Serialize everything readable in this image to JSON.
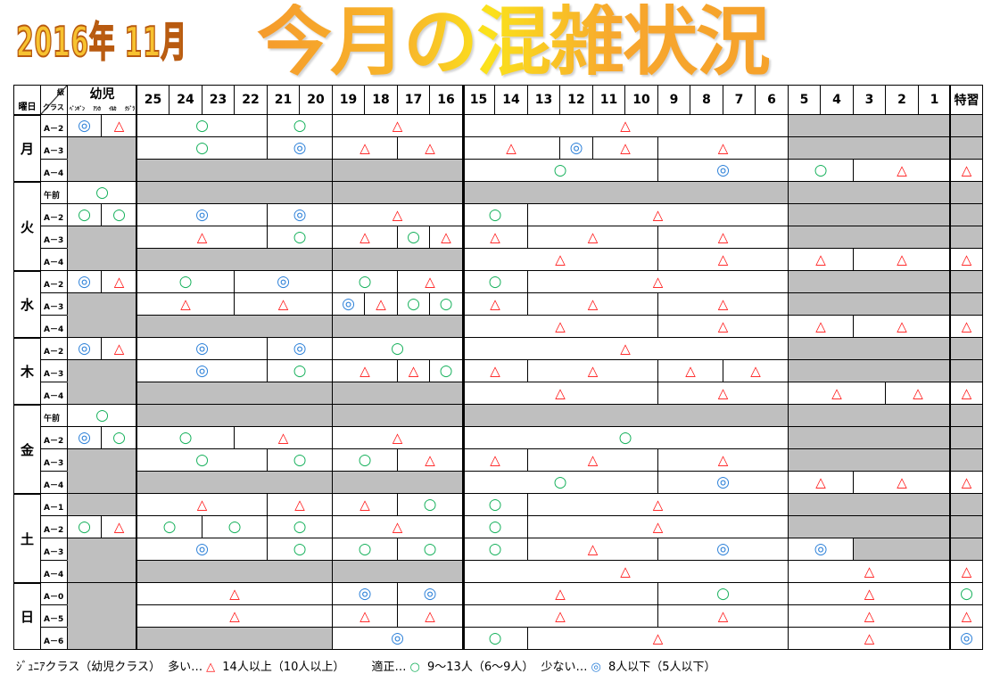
{
  "title": {
    "date": "2016年 11月",
    "main": "今月の混雑状況"
  },
  "colors": {
    "triangle": "#ff1010",
    "circle": "#14b05a",
    "double_circle": "#2a7fd8",
    "closed": "#bfbfbf",
    "title": "#f7a72e"
  },
  "marks": {
    "T": "△",
    "O": "○",
    "D": "◎"
  },
  "header": {
    "weekday": "曜日",
    "grade": "級",
    "class": "クラス",
    "yoji": "幼児",
    "yoji_sub": [
      "ﾍﾟﾝｷﾞﾝ",
      "ｱｼｶ",
      "ｲﾙｶ",
      "ｸｼﾞﾗ"
    ],
    "dates": [
      "25",
      "24",
      "23",
      "22",
      "21",
      "20",
      "19",
      "18",
      "17",
      "16",
      "15",
      "14",
      "13",
      "12",
      "11",
      "10",
      "9",
      "8",
      "7",
      "6",
      "5",
      "4",
      "3",
      "2",
      "1"
    ],
    "special": "特習"
  },
  "days": [
    {
      "label": "月",
      "rows": [
        {
          "class": "A－2",
          "yoji": [
            "D",
            "T"
          ],
          "segs": [
            [
              "25",
              "22",
              "O"
            ],
            [
              "21",
              "20",
              "O"
            ],
            [
              "19",
              "16",
              "T"
            ],
            [
              "15",
              "6",
              "T"
            ],
            [
              "5",
              "1",
              "G"
            ],
            [
              "特習",
              "特習",
              "G"
            ]
          ]
        },
        {
          "class": "A－3",
          "yoji": "G",
          "segs": [
            [
              "25",
              "22",
              "O"
            ],
            [
              "21",
              "20",
              "D"
            ],
            [
              "19",
              "18",
              "T"
            ],
            [
              "17",
              "16",
              "T"
            ],
            [
              "15",
              "13",
              "T"
            ],
            [
              "12",
              "12",
              "D"
            ],
            [
              "11",
              "10",
              "T"
            ],
            [
              "9",
              "6",
              "T"
            ],
            [
              "5",
              "1",
              "G"
            ],
            [
              "特習",
              "特習",
              "G"
            ]
          ]
        },
        {
          "class": "A－4",
          "yoji": "G",
          "segs": [
            [
              "25",
              "20",
              "G"
            ],
            [
              "19",
              "16",
              "G"
            ],
            [
              "15",
              "10",
              "O"
            ],
            [
              "9",
              "6",
              "D"
            ],
            [
              "5",
              "4",
              "O"
            ],
            [
              "3",
              "1",
              "T"
            ],
            [
              "特習",
              "特習",
              "T"
            ]
          ]
        }
      ]
    },
    {
      "label": "火",
      "rows": [
        {
          "class": "午前",
          "yoji": "O",
          "segs": [
            [
              "25",
              "20",
              "G"
            ],
            [
              "19",
              "16",
              "G"
            ],
            [
              "15",
              "6",
              "G"
            ],
            [
              "5",
              "1",
              "G"
            ],
            [
              "特習",
              "特習",
              "G"
            ]
          ]
        },
        {
          "class": "A－2",
          "yoji": [
            "O",
            "O"
          ],
          "segs": [
            [
              "25",
              "22",
              "D"
            ],
            [
              "21",
              "20",
              "D"
            ],
            [
              "19",
              "16",
              "T"
            ],
            [
              "15",
              "14",
              "O"
            ],
            [
              "13",
              "6",
              "T"
            ],
            [
              "5",
              "1",
              "G"
            ],
            [
              "特習",
              "特習",
              "G"
            ]
          ]
        },
        {
          "class": "A－3",
          "yoji": "G",
          "segs": [
            [
              "25",
              "22",
              "T"
            ],
            [
              "21",
              "20",
              "O"
            ],
            [
              "19",
              "18",
              "T"
            ],
            [
              "17",
              "17",
              "O"
            ],
            [
              "16",
              "16",
              "T"
            ],
            [
              "15",
              "14",
              "T"
            ],
            [
              "13",
              "10",
              "T"
            ],
            [
              "9",
              "6",
              "T"
            ],
            [
              "5",
              "1",
              "G"
            ],
            [
              "特習",
              "特習",
              "G"
            ]
          ]
        },
        {
          "class": "A－4",
          "yoji": "G",
          "segs": [
            [
              "25",
              "20",
              "G"
            ],
            [
              "19",
              "16",
              "G"
            ],
            [
              "15",
              "10",
              "T"
            ],
            [
              "9",
              "6",
              "T"
            ],
            [
              "5",
              "4",
              "T"
            ],
            [
              "3",
              "1",
              "T"
            ],
            [
              "特習",
              "特習",
              "T"
            ]
          ]
        }
      ]
    },
    {
      "label": "水",
      "rows": [
        {
          "class": "A－2",
          "yoji": [
            "D",
            "T"
          ],
          "segs": [
            [
              "25",
              "23",
              "O"
            ],
            [
              "22",
              "20",
              "D"
            ],
            [
              "19",
              "18",
              "O"
            ],
            [
              "17",
              "16",
              "T"
            ],
            [
              "15",
              "14",
              "O"
            ],
            [
              "13",
              "6",
              "T"
            ],
            [
              "5",
              "1",
              "G"
            ],
            [
              "特習",
              "特習",
              "G"
            ]
          ]
        },
        {
          "class": "A－3",
          "yoji": "G",
          "segs": [
            [
              "25",
              "23",
              "T"
            ],
            [
              "22",
              "20",
              "T"
            ],
            [
              "19",
              "19",
              "D"
            ],
            [
              "18",
              "18",
              "T"
            ],
            [
              "17",
              "17",
              "O"
            ],
            [
              "16",
              "16",
              "O"
            ],
            [
              "15",
              "14",
              "T"
            ],
            [
              "13",
              "10",
              "T"
            ],
            [
              "9",
              "6",
              "T"
            ],
            [
              "5",
              "1",
              "G"
            ],
            [
              "特習",
              "特習",
              "G"
            ]
          ]
        },
        {
          "class": "A－4",
          "yoji": "G",
          "segs": [
            [
              "25",
              "20",
              "G"
            ],
            [
              "19",
              "16",
              "G"
            ],
            [
              "15",
              "10",
              "T"
            ],
            [
              "9",
              "6",
              "T"
            ],
            [
              "5",
              "4",
              "T"
            ],
            [
              "3",
              "1",
              "T"
            ],
            [
              "特習",
              "特習",
              "T"
            ]
          ]
        }
      ]
    },
    {
      "label": "木",
      "rows": [
        {
          "class": "A－2",
          "yoji": [
            "D",
            "T"
          ],
          "segs": [
            [
              "25",
              "22",
              "D"
            ],
            [
              "21",
              "20",
              "D"
            ],
            [
              "19",
              "16",
              "O"
            ],
            [
              "15",
              "6",
              "T"
            ],
            [
              "5",
              "1",
              "G"
            ],
            [
              "特習",
              "特習",
              "G"
            ]
          ]
        },
        {
          "class": "A－3",
          "yoji": "G",
          "segs": [
            [
              "25",
              "22",
              "D"
            ],
            [
              "21",
              "20",
              "O"
            ],
            [
              "19",
              "18",
              "T"
            ],
            [
              "17",
              "17",
              "T"
            ],
            [
              "16",
              "16",
              "O"
            ],
            [
              "15",
              "14",
              "T"
            ],
            [
              "13",
              "10",
              "T"
            ],
            [
              "9",
              "8",
              "T"
            ],
            [
              "7",
              "6",
              "T"
            ],
            [
              "5",
              "1",
              "G"
            ],
            [
              "特習",
              "特習",
              "G"
            ]
          ]
        },
        {
          "class": "A－4",
          "yoji": "G",
          "segs": [
            [
              "25",
              "20",
              "G"
            ],
            [
              "19",
              "16",
              "G"
            ],
            [
              "15",
              "10",
              "T"
            ],
            [
              "9",
              "6",
              "T"
            ],
            [
              "5",
              "3",
              "T"
            ],
            [
              "2",
              "1",
              "T"
            ],
            [
              "特習",
              "特習",
              "T"
            ]
          ]
        }
      ]
    },
    {
      "label": "金",
      "rows": [
        {
          "class": "午前",
          "yoji": "O",
          "segs": [
            [
              "25",
              "20",
              "G"
            ],
            [
              "19",
              "16",
              "G"
            ],
            [
              "15",
              "6",
              "G"
            ],
            [
              "5",
              "1",
              "G"
            ],
            [
              "特習",
              "特習",
              "G"
            ]
          ]
        },
        {
          "class": "A－2",
          "yoji": [
            "D",
            "O"
          ],
          "segs": [
            [
              "25",
              "23",
              "O"
            ],
            [
              "22",
              "20",
              "T"
            ],
            [
              "19",
              "16",
              "T"
            ],
            [
              "15",
              "6",
              "O"
            ],
            [
              "5",
              "1",
              "G"
            ],
            [
              "特習",
              "特習",
              "G"
            ]
          ]
        },
        {
          "class": "A－3",
          "yoji": "G",
          "segs": [
            [
              "25",
              "22",
              "O"
            ],
            [
              "21",
              "20",
              "O"
            ],
            [
              "19",
              "18",
              "O"
            ],
            [
              "17",
              "16",
              "T"
            ],
            [
              "15",
              "14",
              "T"
            ],
            [
              "13",
              "10",
              "T"
            ],
            [
              "9",
              "6",
              "T"
            ],
            [
              "5",
              "1",
              "G"
            ],
            [
              "特習",
              "特習",
              "G"
            ]
          ]
        },
        {
          "class": "A－4",
          "yoji": "G",
          "segs": [
            [
              "25",
              "20",
              "G"
            ],
            [
              "19",
              "16",
              "G"
            ],
            [
              "15",
              "10",
              "O"
            ],
            [
              "9",
              "6",
              "D"
            ],
            [
              "5",
              "4",
              "T"
            ],
            [
              "3",
              "1",
              "T"
            ],
            [
              "特習",
              "特習",
              "T"
            ]
          ]
        }
      ]
    },
    {
      "label": "土",
      "rows": [
        {
          "class": "A－1",
          "yoji": "G",
          "segs": [
            [
              "25",
              "22",
              "T"
            ],
            [
              "21",
              "20",
              "T"
            ],
            [
              "19",
              "18",
              "T"
            ],
            [
              "17",
              "16",
              "O"
            ],
            [
              "15",
              "14",
              "O"
            ],
            [
              "13",
              "6",
              "T"
            ],
            [
              "5",
              "1",
              "G"
            ],
            [
              "特習",
              "特習",
              "G"
            ]
          ]
        },
        {
          "class": "A－2",
          "yoji": [
            "O",
            "T"
          ],
          "segs": [
            [
              "25",
              "24",
              "O"
            ],
            [
              "23",
              "22",
              "O"
            ],
            [
              "21",
              "20",
              "O"
            ],
            [
              "19",
              "16",
              "T"
            ],
            [
              "15",
              "14",
              "O"
            ],
            [
              "13",
              "6",
              "T"
            ],
            [
              "5",
              "1",
              "G"
            ],
            [
              "特習",
              "特習",
              "G"
            ]
          ]
        },
        {
          "class": "A－3",
          "yoji": "G",
          "segs": [
            [
              "25",
              "22",
              "D"
            ],
            [
              "21",
              "20",
              "O"
            ],
            [
              "19",
              "18",
              "O"
            ],
            [
              "17",
              "16",
              "O"
            ],
            [
              "15",
              "14",
              "O"
            ],
            [
              "13",
              "10",
              "T"
            ],
            [
              "9",
              "6",
              "D"
            ],
            [
              "5",
              "4",
              "D"
            ],
            [
              "3",
              "1",
              "G"
            ],
            [
              "特習",
              "特習",
              "G"
            ]
          ]
        },
        {
          "class": "A－4",
          "yoji": "G",
          "segs": [
            [
              "25",
              "20",
              "G"
            ],
            [
              "19",
              "16",
              "G"
            ],
            [
              "15",
              "6",
              "T"
            ],
            [
              "5",
              "1",
              "T"
            ],
            [
              "特習",
              "特習",
              "T"
            ]
          ]
        }
      ]
    },
    {
      "label": "日",
      "rows": [
        {
          "class": "A－0",
          "yoji": "G",
          "segs": [
            [
              "25",
              "20",
              "T"
            ],
            [
              "19",
              "18",
              "D"
            ],
            [
              "17",
              "16",
              "D"
            ],
            [
              "15",
              "10",
              "T"
            ],
            [
              "9",
              "6",
              "O"
            ],
            [
              "5",
              "1",
              "T"
            ],
            [
              "特習",
              "特習",
              "O"
            ]
          ]
        },
        {
          "class": "A－5",
          "yoji": "G",
          "segs": [
            [
              "25",
              "20",
              "T"
            ],
            [
              "19",
              "18",
              "T"
            ],
            [
              "17",
              "16",
              "T"
            ],
            [
              "15",
              "10",
              "T"
            ],
            [
              "9",
              "6",
              "T"
            ],
            [
              "5",
              "1",
              "T"
            ],
            [
              "特習",
              "特習",
              "T"
            ]
          ]
        },
        {
          "class": "A－6",
          "yoji": "G",
          "segs": [
            [
              "25",
              "20",
              "G"
            ],
            [
              "19",
              "16",
              "D"
            ],
            [
              "15",
              "14",
              "O"
            ],
            [
              "13",
              "6",
              "T"
            ],
            [
              "5",
              "1",
              "T"
            ],
            [
              "特習",
              "特習",
              "D"
            ]
          ]
        }
      ]
    }
  ],
  "legend": {
    "prefix": "ｼﾞｭﾆｱクラス（幼児クラス）",
    "many": "多い…",
    "many_range": "14人以上（10人以上）",
    "ok": "適正…",
    "ok_range": "9～13人（6～9人）",
    "few": "少ない…",
    "few_range": "8人以下（5人以下）"
  }
}
